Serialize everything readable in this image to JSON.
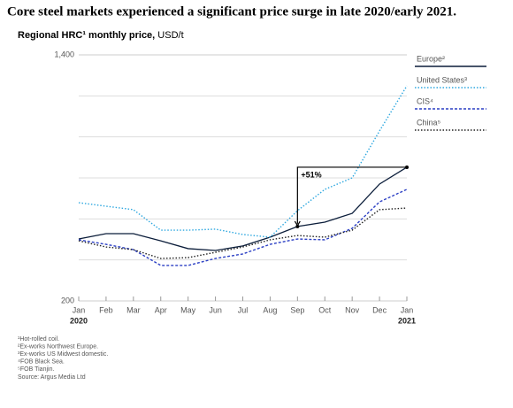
{
  "chart_data": {
    "type": "line",
    "title": "Core steel markets experienced a significant price surge in late 2020/early 2021.",
    "subtitle": "Regional HRC¹ monthly price,",
    "unit": " USD/t",
    "categories": [
      "Jan",
      "Feb",
      "Mar",
      "Apr",
      "May",
      "Jun",
      "Jul",
      "Aug",
      "Sep",
      "Oct",
      "Nov",
      "Dec",
      "Jan"
    ],
    "category_years": [
      "2020",
      "2021"
    ],
    "ylim": [
      200,
      1400
    ],
    "yticks": [
      200,
      {
        "value": 1400,
        "label": "1,400"
      }
    ],
    "ygrid": [
      400,
      600,
      800,
      1000,
      1200
    ],
    "grid": true,
    "legend": "top-right",
    "series": [
      {
        "name": "Europe²",
        "color": "#0b1d3a",
        "style": "solid",
        "values": [
          502,
          528,
          528,
          493,
          455,
          446,
          468,
          511,
          563,
          584,
          627,
          770,
          852
        ]
      },
      {
        "name": "United States³",
        "color": "#2fa8e0",
        "style": "dotted",
        "values": [
          679,
          662,
          645,
          545,
          545,
          550,
          524,
          511,
          640,
          744,
          800,
          1029,
          1249
        ]
      },
      {
        "name": "CIS⁴",
        "color": "#2b3fc4",
        "style": "dashed",
        "values": [
          498,
          476,
          450,
          373,
          373,
          407,
          429,
          476,
          502,
          498,
          554,
          683,
          744
        ]
      },
      {
        "name": "China⁵",
        "color": "#222222",
        "style": "dotted",
        "values": [
          493,
          463,
          450,
          407,
          411,
          437,
          463,
          498,
          519,
          511,
          545,
          645,
          653
        ]
      }
    ],
    "annotation": {
      "text": "+51%",
      "series": 0,
      "from": 8,
      "to": 12
    },
    "footnotes": [
      "¹Hot-rolled coil.",
      "²Ex-works Northwest Europe.",
      "³Ex-works US Midwest domestic.",
      "⁴FOB Black Sea.",
      "⁵FOB Tianjin.",
      "Source: Argus Media Ltd"
    ]
  }
}
